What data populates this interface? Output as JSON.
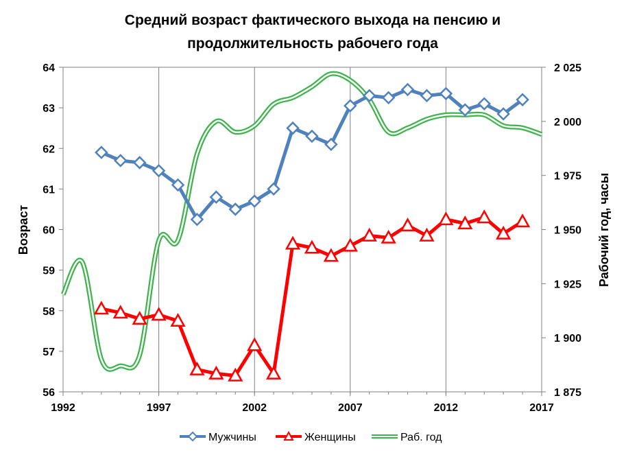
{
  "chart_data": {
    "type": "line",
    "title_lines": [
      "Средний возраст фактического выхода на пенсию и",
      "продолжительность рабочего года"
    ],
    "ylabel_left": "Возраст",
    "ylabel_right": "Рабочий год, часы",
    "x_ticks": [
      "1992",
      "1997",
      "2002",
      "2007",
      "2012",
      "2017"
    ],
    "x_range": [
      1992,
      2017
    ],
    "y_left_range": [
      56,
      64
    ],
    "y_left_ticks": [
      "56",
      "57",
      "58",
      "59",
      "60",
      "61",
      "62",
      "63",
      "64"
    ],
    "y_right_range": [
      1875,
      2025
    ],
    "y_right_ticks": [
      "1 875",
      "1 900",
      "1 925",
      "1 950",
      "1 975",
      "2 000",
      "2 025"
    ],
    "grid": "vertical",
    "legend_position": "bottom",
    "colors": {
      "men": "#4f81bd",
      "women": "#ff0000",
      "work": "#3cb44b",
      "grid": "#808080"
    },
    "series": [
      {
        "name": "Мужчины",
        "axis": "left",
        "marker": "diamond",
        "x": [
          1994,
          1995,
          1996,
          1997,
          1998,
          1999,
          2000,
          2001,
          2002,
          2003,
          2004,
          2005,
          2006,
          2007,
          2008,
          2009,
          2010,
          2011,
          2012,
          2013,
          2014,
          2015,
          2016
        ],
        "values": [
          61.9,
          61.7,
          61.65,
          61.45,
          61.1,
          60.25,
          60.8,
          60.5,
          60.7,
          61.0,
          62.5,
          62.3,
          62.1,
          63.05,
          63.3,
          63.25,
          63.45,
          63.3,
          63.35,
          62.95,
          63.1,
          62.85,
          63.2
        ]
      },
      {
        "name": "Женщины",
        "axis": "left",
        "marker": "triangle",
        "x": [
          1994,
          1995,
          1996,
          1997,
          1998,
          1999,
          2000,
          2001,
          2002,
          2003,
          2004,
          2005,
          2006,
          2007,
          2008,
          2009,
          2010,
          2011,
          2012,
          2013,
          2014,
          2015,
          2016
        ],
        "values": [
          58.05,
          57.95,
          57.8,
          57.9,
          57.75,
          56.55,
          56.45,
          56.4,
          57.15,
          56.45,
          59.65,
          59.55,
          59.35,
          59.6,
          59.85,
          59.8,
          60.1,
          59.85,
          60.25,
          60.15,
          60.3,
          59.9,
          60.2
        ]
      },
      {
        "name": "Раб. год",
        "axis": "right",
        "marker": "none",
        "x": [
          1992,
          1993,
          1994,
          1995,
          1996,
          1997,
          1998,
          1999,
          2000,
          2001,
          2002,
          2003,
          2004,
          2005,
          2006,
          2007,
          2008,
          2009,
          2010,
          2011,
          2012,
          2013,
          2014,
          2015,
          2016,
          2017
        ],
        "values": [
          1920,
          1935,
          1890,
          1887,
          1892,
          1945,
          1945,
          1985,
          2000,
          1995,
          1998,
          2008,
          2011,
          2016,
          2022,
          2019,
          2010,
          1995,
          1997,
          2001,
          2003,
          2003,
          2003,
          1998,
          1997,
          1994
        ]
      }
    ]
  }
}
